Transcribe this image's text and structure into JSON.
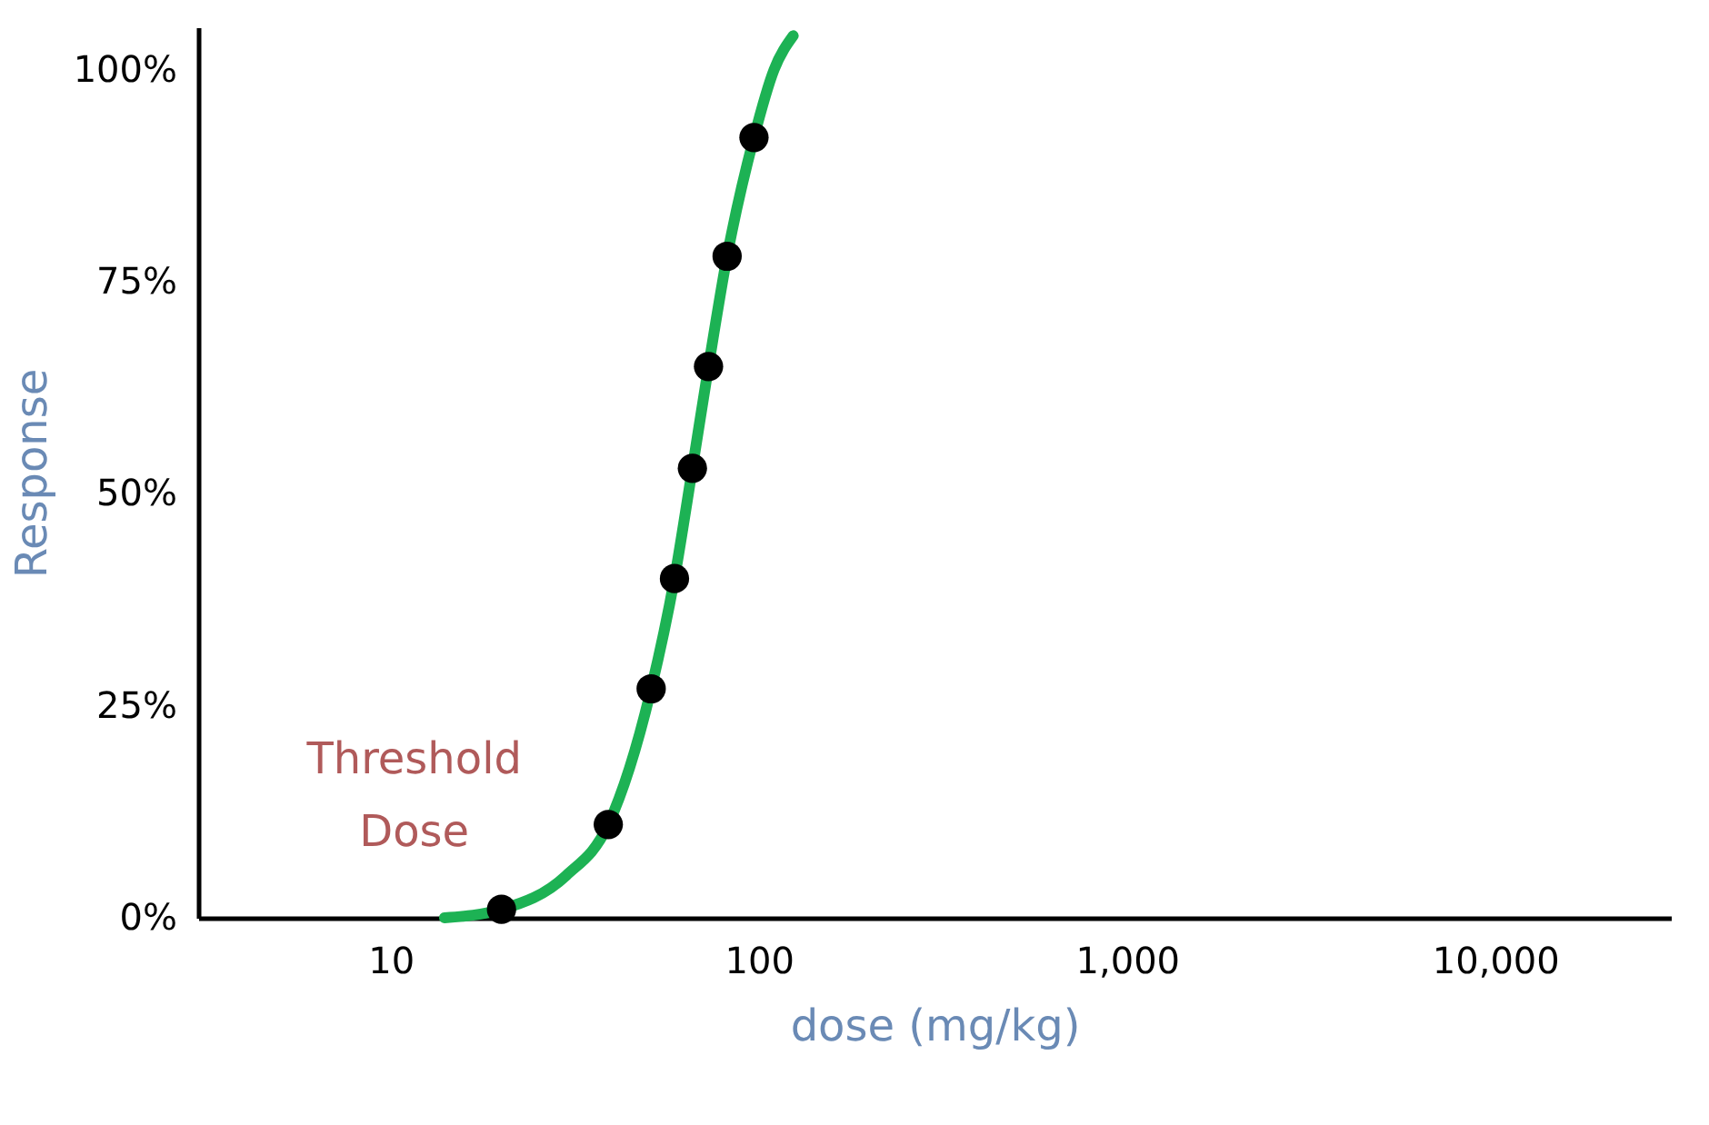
{
  "chart_data": {
    "type": "scatter",
    "xlabel": "dose (mg/kg)",
    "ylabel": "Response",
    "log": "x",
    "xlim": [
      3,
      30000
    ],
    "xticks": [
      {
        "value": 10,
        "label": "10"
      },
      {
        "value": 100,
        "label": "100"
      },
      {
        "value": 1000,
        "label": "1,000"
      },
      {
        "value": 10000,
        "label": "10,000"
      }
    ],
    "ylim": [
      0,
      105
    ],
    "yticks": [
      {
        "value": 0,
        "label": "0%"
      },
      {
        "value": 25,
        "label": "25%"
      },
      {
        "value": 50,
        "label": "50%"
      },
      {
        "value": 75,
        "label": "75%"
      },
      {
        "value": 100,
        "label": "100%"
      }
    ],
    "grid": false,
    "marker": "circle",
    "series": [
      {
        "type": "line",
        "marker": "none",
        "color": "#1db254",
        "x": [
          14,
          20,
          30,
          39,
          51,
          59,
          66,
          73,
          82,
          97,
          110,
          124
        ],
        "values": [
          0,
          1,
          5,
          11,
          27,
          40,
          53,
          65,
          78,
          92,
          100,
          104
        ]
      },
      {
        "type": "scatter",
        "color": "#000000",
        "x": [
          20,
          39,
          51,
          59,
          66,
          73,
          82,
          97
        ],
        "values": [
          1,
          11,
          27,
          40,
          53,
          65,
          78,
          92
        ]
      }
    ],
    "annotations": [
      {
        "text": "Threshold Dose",
        "x": 20,
        "y": 1
      }
    ]
  }
}
